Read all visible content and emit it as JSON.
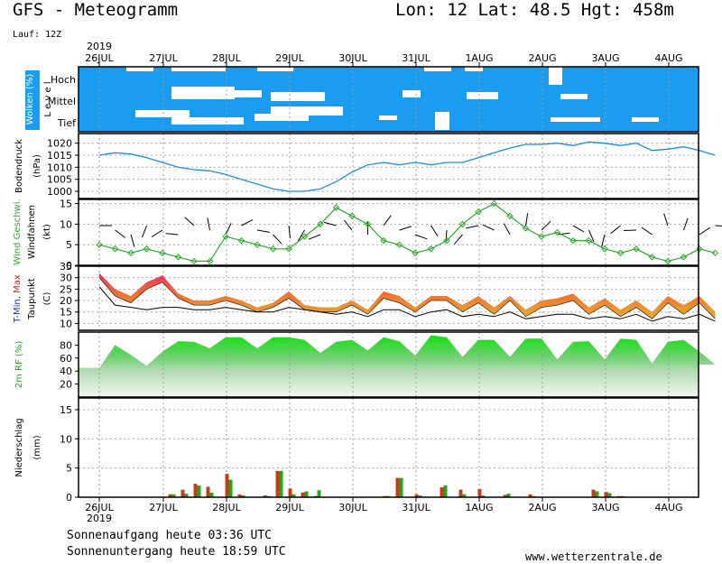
{
  "header": {
    "title": "GFS - Meteogramm",
    "location": "Lon: 12 Lat: 48.5 Hgt: 458m",
    "run": "Lauf: 12Z"
  },
  "footer": {
    "sunrise": "Sonnenaufgang heute 03:36 UTC",
    "sunset": "Sonnenuntergang heute 18:59 UTC",
    "site": "www.wetterzentrale.de"
  },
  "colors": {
    "cloud_bg": "#1a9cf0",
    "pressure": "#1a8fd8",
    "wind_speed": "#2ca82c",
    "tmax": "#e02020",
    "tmin": "#1c30c8",
    "humidity": "#22cc22",
    "precip_convective": "#c83c14",
    "precip_large_scale": "#22a622"
  },
  "chart_data": {
    "type": "meteogram",
    "year": "2019",
    "dates": [
      "26JUL",
      "27JUL",
      "28JUL",
      "29JUL",
      "30JUL",
      "31JUL",
      "1AUG",
      "2AUG",
      "3AUG",
      "4AUG"
    ],
    "panels": {
      "clouds": {
        "label_main": "Wolken (%)",
        "label_sub": "L e v e l",
        "levels": [
          "Hoch",
          "Mittel",
          "Tief"
        ]
      },
      "pressure": {
        "label_main": "Bodendruck",
        "unit": "(hPa)",
        "ticks": [
          1000,
          1005,
          1010,
          1015,
          1020
        ],
        "ylim": [
          997,
          1024
        ],
        "times": [
          0,
          0.25,
          0.5,
          0.75,
          1,
          1.25,
          1.5,
          1.75,
          2,
          2.25,
          2.5,
          2.75,
          3,
          3.25,
          3.5,
          3.75,
          4,
          4.25,
          4.5,
          4.75,
          5,
          5.25,
          5.5,
          5.75,
          6,
          6.25,
          6.5,
          6.75,
          7,
          7.25,
          7.5,
          7.75,
          8,
          8.25,
          8.5,
          8.75,
          9,
          9.25,
          9.5,
          9.75
        ],
        "values": [
          1015,
          1016,
          1015.5,
          1014,
          1012,
          1010,
          1009,
          1008.5,
          1007,
          1005,
          1003,
          1001,
          1000,
          1000,
          1001,
          1004,
          1008,
          1011,
          1012,
          1011,
          1012,
          1011,
          1012,
          1012,
          1014,
          1016,
          1018,
          1019.5,
          1019.5,
          1020,
          1019,
          1020.5,
          1020,
          1019,
          1020,
          1017,
          1017.5,
          1018.5,
          1017,
          1015
        ]
      },
      "wind": {
        "label_main": "Wind Geschwi.",
        "label_sub": "Windfahnen",
        "unit": "(kt)",
        "ticks": [
          0,
          5,
          10,
          15
        ],
        "ylim": [
          0,
          16
        ],
        "times": [
          0,
          0.25,
          0.5,
          0.75,
          1,
          1.25,
          1.5,
          1.75,
          2,
          2.25,
          2.5,
          2.75,
          3,
          3.25,
          3.5,
          3.75,
          4,
          4.25,
          4.5,
          4.75,
          5,
          5.25,
          5.5,
          5.75,
          6,
          6.25,
          6.5,
          6.75,
          7,
          7.25,
          7.5,
          7.75,
          8,
          8.25,
          8.5,
          8.75,
          9,
          9.25,
          9.5,
          9.75
        ],
        "values": [
          5,
          4,
          3,
          4,
          3,
          2,
          1,
          1,
          7,
          6,
          5,
          4,
          4,
          7,
          10,
          14,
          12,
          10,
          6,
          5,
          3,
          4,
          6,
          10,
          13,
          15,
          12,
          9,
          7,
          8,
          6,
          6,
          4,
          3,
          4,
          2,
          1,
          2,
          4,
          3
        ]
      },
      "temperature": {
        "label_main": "T-Min, Max",
        "label_sub": "Taupunkt",
        "unit": "(C)",
        "ticks": [
          10,
          15,
          20,
          25,
          30,
          35
        ],
        "ylim": [
          7,
          35
        ],
        "times": [
          0,
          0.25,
          0.5,
          0.75,
          1,
          1.25,
          1.5,
          1.75,
          2,
          2.25,
          2.5,
          2.75,
          3,
          3.25,
          3.5,
          3.75,
          4,
          4.25,
          4.5,
          4.75,
          5,
          5.25,
          5.5,
          5.75,
          6,
          6.25,
          6.5,
          6.75,
          7,
          7.25,
          7.5,
          7.75,
          8,
          8.25,
          8.5,
          8.75,
          9,
          9.25,
          9.5,
          9.75
        ],
        "tmax": [
          32,
          25,
          22,
          28,
          31,
          23,
          20,
          20,
          22,
          20,
          17,
          19,
          24,
          18,
          17,
          17,
          20,
          16,
          24,
          22,
          17,
          22,
          22,
          18,
          22,
          17,
          22,
          16,
          20,
          21,
          23,
          17,
          21,
          16,
          20,
          15,
          22,
          18,
          22,
          15
        ],
        "tmin": [
          30,
          22,
          19,
          25,
          28,
          21,
          18,
          18,
          20,
          18,
          15,
          17,
          21,
          16,
          15,
          15,
          18,
          14,
          21,
          19,
          15,
          20,
          20,
          15,
          19,
          14,
          20,
          13,
          17,
          18,
          20,
          14,
          18,
          13,
          17,
          12,
          19,
          14,
          19,
          12
        ],
        "dewpoint": [
          26,
          18,
          17,
          16,
          17,
          17,
          16,
          16,
          17,
          16,
          15,
          15,
          17,
          16,
          15,
          14,
          15,
          13,
          16,
          16,
          13,
          15,
          16,
          13,
          14,
          13,
          15,
          12,
          13,
          14,
          14,
          12,
          13,
          12,
          14,
          11,
          13,
          12,
          14,
          11
        ]
      },
      "humidity": {
        "label_main": "2m RF (%)",
        "ticks": [
          20,
          40,
          60,
          80
        ],
        "ylim": [
          0,
          100
        ],
        "times": [
          0,
          0.25,
          0.5,
          0.75,
          1,
          1.25,
          1.5,
          1.75,
          2,
          2.25,
          2.5,
          2.75,
          3,
          3.25,
          3.5,
          3.75,
          4,
          4.25,
          4.5,
          4.75,
          5,
          5.25,
          5.5,
          5.75,
          6,
          6.25,
          6.5,
          6.75,
          7,
          7.25,
          7.5,
          7.75,
          8,
          8.25,
          8.5,
          8.75,
          9,
          9.25,
          9.5,
          9.75
        ],
        "values": [
          45,
          80,
          65,
          48,
          70,
          86,
          85,
          75,
          92,
          92,
          75,
          92,
          92,
          88,
          68,
          85,
          88,
          72,
          92,
          86,
          64,
          95,
          92,
          62,
          88,
          88,
          62,
          90,
          90,
          58,
          85,
          86,
          58,
          90,
          88,
          52,
          85,
          88,
          70,
          50
        ]
      },
      "precip": {
        "label_main": "Niederschlag",
        "unit": "(mm)",
        "ticks": [
          0,
          5,
          10,
          15
        ],
        "ylim": [
          0,
          17
        ],
        "bars": [
          {
            "t": 1.15,
            "convective": 0.5,
            "large_scale": 0.5
          },
          {
            "t": 1.35,
            "convective": 1.3,
            "large_scale": 0.6
          },
          {
            "t": 1.55,
            "convective": 2.3,
            "large_scale": 2
          },
          {
            "t": 1.75,
            "convective": 1.8,
            "large_scale": 0.8
          },
          {
            "t": 2.05,
            "convective": 4,
            "large_scale": 3
          },
          {
            "t": 2.25,
            "convective": 0.5,
            "large_scale": 0.3
          },
          {
            "t": 2.65,
            "convective": 0.3,
            "large_scale": 0.2
          },
          {
            "t": 2.85,
            "convective": 4.5,
            "large_scale": 4.5
          },
          {
            "t": 3.05,
            "convective": 1.5,
            "large_scale": 0.5
          },
          {
            "t": 3.25,
            "convective": 0.8,
            "large_scale": 1
          },
          {
            "t": 3.45,
            "convective": 0.2,
            "large_scale": 1.2
          },
          {
            "t": 4.55,
            "convective": 0.2,
            "large_scale": 0.2
          },
          {
            "t": 4.75,
            "convective": 3.3,
            "large_scale": 3.3
          },
          {
            "t": 5.05,
            "convective": 0.5,
            "large_scale": 0.3
          },
          {
            "t": 5.45,
            "convective": 1.7,
            "large_scale": 2
          },
          {
            "t": 5.75,
            "convective": 1.3,
            "large_scale": 0.5
          },
          {
            "t": 6.05,
            "convective": 1.4,
            "large_scale": 0.3
          },
          {
            "t": 6.45,
            "convective": 0.4,
            "large_scale": 0.6
          },
          {
            "t": 6.85,
            "convective": 0.5,
            "large_scale": 0.2
          },
          {
            "t": 7.85,
            "convective": 1.3,
            "large_scale": 1
          },
          {
            "t": 8.05,
            "convective": 0.9,
            "large_scale": 0.7
          },
          {
            "t": 8.25,
            "convective": 0.2,
            "large_scale": 0.2
          }
        ]
      }
    }
  }
}
